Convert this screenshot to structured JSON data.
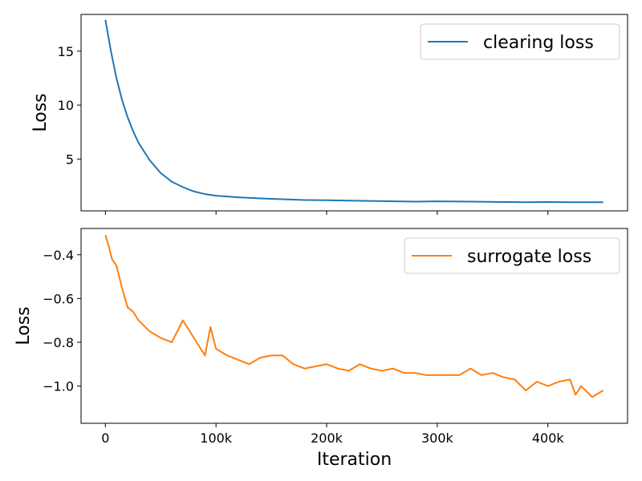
{
  "chart_data": [
    {
      "type": "line",
      "xlabel": "",
      "ylabel": "Loss",
      "xlim": [
        -22000,
        472000
      ],
      "ylim": [
        0.2,
        18.4
      ],
      "yticks": [
        5,
        10,
        15
      ],
      "ytick_labels": [
        "5",
        "10",
        "15"
      ],
      "xticks": [
        0,
        100000,
        200000,
        300000,
        400000
      ],
      "xtick_labels": [],
      "legend": "upper-right",
      "grid": false,
      "series": [
        {
          "name": "clearing loss",
          "color": "#1f77b4",
          "x": [
            0,
            5000,
            10000,
            15000,
            20000,
            25000,
            30000,
            40000,
            50000,
            60000,
            70000,
            80000,
            90000,
            100000,
            120000,
            140000,
            160000,
            180000,
            200000,
            220000,
            250000,
            280000,
            300000,
            330000,
            360000,
            380000,
            400000,
            420000,
            450000
          ],
          "y": [
            17.9,
            15.0,
            12.5,
            10.5,
            8.9,
            7.6,
            6.5,
            4.9,
            3.7,
            2.9,
            2.4,
            2.0,
            1.75,
            1.6,
            1.45,
            1.35,
            1.28,
            1.2,
            1.18,
            1.15,
            1.1,
            1.05,
            1.08,
            1.05,
            1.02,
            1.0,
            1.02,
            1.0,
            1.0
          ]
        }
      ]
    },
    {
      "type": "line",
      "xlabel": "Iteration",
      "ylabel": "Loss",
      "xlim": [
        -22000,
        472000
      ],
      "ylim": [
        -1.17,
        -0.28
      ],
      "yticks": [
        -1.0,
        -0.8,
        -0.6,
        -0.4
      ],
      "ytick_labels": [
        "−1.0",
        "−0.8",
        "−0.6",
        "−0.4"
      ],
      "xticks": [
        0,
        100000,
        200000,
        300000,
        400000
      ],
      "xtick_labels": [
        "0",
        "100k",
        "200k",
        "300k",
        "400k"
      ],
      "legend": "upper-right",
      "grid": false,
      "series": [
        {
          "name": "surrogate loss",
          "color": "#ff7f0e",
          "x": [
            0,
            3000,
            6000,
            10000,
            15000,
            20000,
            25000,
            30000,
            40000,
            50000,
            60000,
            70000,
            80000,
            90000,
            95000,
            100000,
            110000,
            120000,
            130000,
            140000,
            150000,
            160000,
            170000,
            180000,
            190000,
            200000,
            210000,
            220000,
            230000,
            240000,
            250000,
            260000,
            270000,
            280000,
            290000,
            300000,
            310000,
            320000,
            330000,
            340000,
            350000,
            360000,
            370000,
            380000,
            390000,
            400000,
            410000,
            420000,
            425000,
            430000,
            440000,
            450000
          ],
          "y": [
            -0.31,
            -0.36,
            -0.42,
            -0.45,
            -0.55,
            -0.64,
            -0.66,
            -0.7,
            -0.75,
            -0.78,
            -0.8,
            -0.7,
            -0.78,
            -0.86,
            -0.73,
            -0.83,
            -0.86,
            -0.88,
            -0.9,
            -0.87,
            -0.86,
            -0.86,
            -0.9,
            -0.92,
            -0.91,
            -0.9,
            -0.92,
            -0.93,
            -0.9,
            -0.92,
            -0.93,
            -0.92,
            -0.94,
            -0.94,
            -0.95,
            -0.95,
            -0.95,
            -0.95,
            -0.92,
            -0.95,
            -0.94,
            -0.96,
            -0.97,
            -1.02,
            -0.98,
            -1.0,
            -0.98,
            -0.97,
            -1.04,
            -1.0,
            -1.05,
            -1.02
          ]
        }
      ]
    }
  ]
}
